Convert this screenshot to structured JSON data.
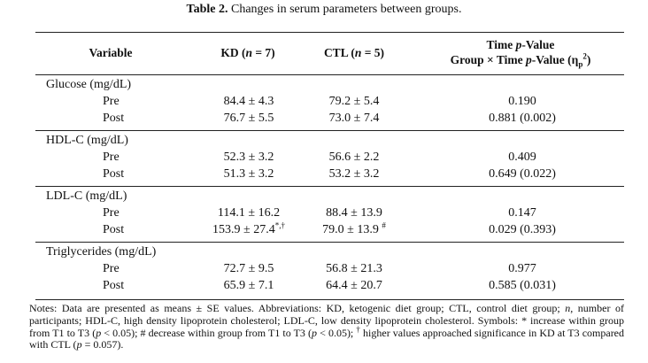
{
  "caption": {
    "label": "Table 2.",
    "text": "Changes in serum parameters between groups."
  },
  "headers": {
    "variable": "Variable",
    "kd_prefix": "KD (",
    "kd_n": "n",
    "kd_suffix": " = 7)",
    "ctl_prefix": "CTL (",
    "ctl_n": "n",
    "ctl_suffix": " = 5)",
    "time_prefix": "Time ",
    "time_p": "p",
    "time_suffix": "-Value",
    "gxt_prefix": "Group × Time ",
    "gxt_p": "p",
    "gxt_mid": "-Value (η",
    "gxt_sub": "p",
    "gxt_sup": "2",
    "gxt_end": ")"
  },
  "rows": [
    {
      "group": "Glucose (mg/dL)",
      "pre": {
        "label": "Pre",
        "kd": "84.4 ± 4.3",
        "kd_mark": "",
        "ctl": "79.2 ± 5.4",
        "ctl_mark": "",
        "p": "0.190"
      },
      "post": {
        "label": "Post",
        "kd": "76.7 ± 5.5",
        "kd_mark": "",
        "ctl": "73.0 ± 7.4",
        "ctl_mark": "",
        "p": "0.881 (0.002)"
      }
    },
    {
      "group": "HDL-C (mg/dL)",
      "pre": {
        "label": "Pre",
        "kd": "52.3 ± 3.2",
        "kd_mark": "",
        "ctl": "56.6 ± 2.2",
        "ctl_mark": "",
        "p": "0.409"
      },
      "post": {
        "label": "Post",
        "kd": "51.3 ± 3.2",
        "kd_mark": "",
        "ctl": "53.2 ± 3.2",
        "ctl_mark": "",
        "p": "0.649 (0.022)"
      }
    },
    {
      "group": "LDL-C (mg/dL)",
      "pre": {
        "label": "Pre",
        "kd": "114.1 ± 16.2",
        "kd_mark": "",
        "ctl": "88.4 ± 13.9",
        "ctl_mark": "",
        "p": "0.147"
      },
      "post": {
        "label": "Post",
        "kd": "153.9 ± 27.4",
        "kd_mark": "*,†",
        "ctl": "79.0 ± 13.9",
        "ctl_mark": "#",
        "p": "0.029 (0.393)"
      }
    },
    {
      "group": "Triglycerides (mg/dL)",
      "pre": {
        "label": "Pre",
        "kd": "72.7 ± 9.5",
        "kd_mark": "",
        "ctl": "56.8 ± 21.3",
        "ctl_mark": "",
        "p": "0.977"
      },
      "post": {
        "label": "Post",
        "kd": "65.9 ± 7.1",
        "kd_mark": "",
        "ctl": "64.4 ± 20.7",
        "ctl_mark": "",
        "p": "0.585 (0.031)"
      }
    }
  ],
  "notes": {
    "a": "Notes: Data are presented as means ± SE values. Abbreviations: KD, ketogenic diet group; CTL, control diet group;",
    "n_italic": "n",
    "b": ", number of participants; HDL-C, high density lipoprotein cholesterol; LDL-C, low density lipoprotein cholesterol. Symbols: * increase within group from T1 to T3 (",
    "p1": "p",
    "c": " < 0.05); # decrease within group from T1 to T3 (",
    "p2": "p",
    "d": " < 0.05);",
    "dagger": "†",
    "e": " higher values approached significance in KD at T3 compared with CTL (",
    "p3": "p",
    "f": " = 0.057)."
  }
}
